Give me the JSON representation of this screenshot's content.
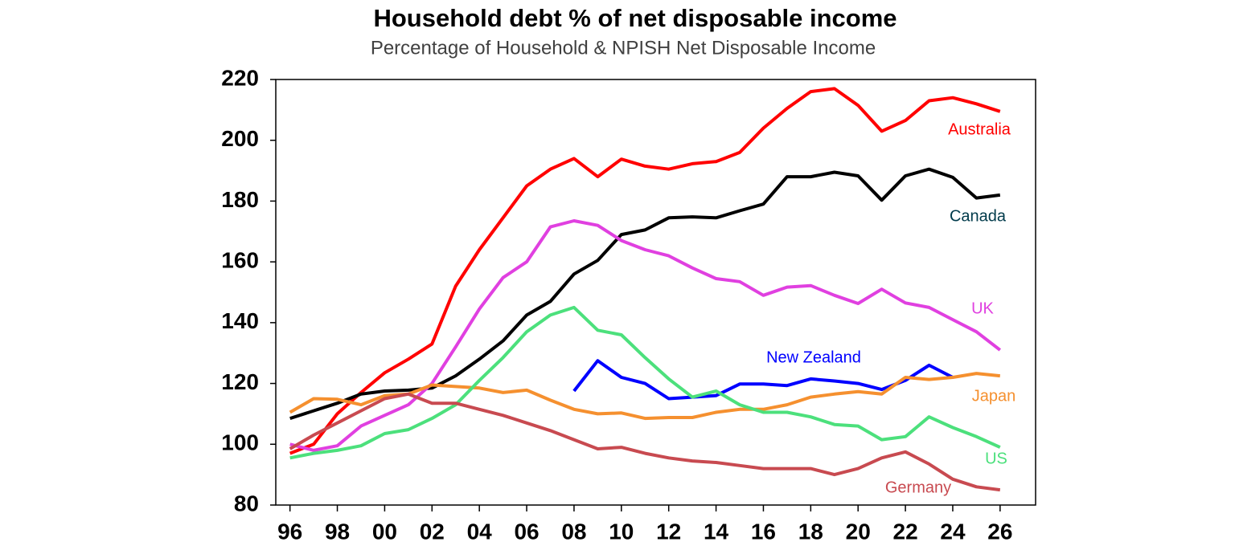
{
  "chart_data": {
    "type": "line",
    "title": "Household debt % of net disposable income",
    "subtitle": "Percentage of Household & NPISH Net Disposable Income",
    "x": [
      1996,
      1997,
      1998,
      1999,
      2000,
      2001,
      2002,
      2003,
      2004,
      2005,
      2006,
      2007,
      2008,
      2009,
      2010,
      2011,
      2012,
      2013,
      2014,
      2015,
      2016,
      2017,
      2018,
      2019,
      2020,
      2021,
      2022,
      2023,
      2024,
      2025,
      2026
    ],
    "xlim": [
      1995.4,
      2027.5
    ],
    "xticks": [
      {
        "value": 1996,
        "label": "96"
      },
      {
        "value": 1998,
        "label": "98"
      },
      {
        "value": 2000,
        "label": "00"
      },
      {
        "value": 2002,
        "label": "02"
      },
      {
        "value": 2004,
        "label": "04"
      },
      {
        "value": 2006,
        "label": "06"
      },
      {
        "value": 2008,
        "label": "08"
      },
      {
        "value": 2010,
        "label": "10"
      },
      {
        "value": 2012,
        "label": "12"
      },
      {
        "value": 2014,
        "label": "14"
      },
      {
        "value": 2016,
        "label": "16"
      },
      {
        "value": 2018,
        "label": "18"
      },
      {
        "value": 2020,
        "label": "20"
      },
      {
        "value": 2022,
        "label": "22"
      },
      {
        "value": 2024,
        "label": "24"
      },
      {
        "value": 2026,
        "label": "26"
      }
    ],
    "ylim": [
      80,
      220
    ],
    "yticks": [
      80,
      100,
      120,
      140,
      160,
      180,
      200,
      220
    ],
    "series": [
      {
        "name": "Australia",
        "color": "#ff0000",
        "values": [
          97,
          100,
          110,
          117,
          123.5,
          128,
          133,
          152,
          164,
          174.5,
          185,
          190.5,
          194,
          188,
          193.8,
          191.5,
          190.5,
          192.3,
          193,
          196,
          204,
          210.5,
          216,
          217,
          211.5,
          203,
          206.5,
          213,
          214,
          212,
          209.5
        ]
      },
      {
        "name": "Canada",
        "color": "#000000",
        "values": [
          108.5,
          111,
          113.5,
          116.5,
          117.5,
          117.8,
          118.5,
          122.5,
          128,
          134,
          142.5,
          147,
          156,
          160.5,
          169,
          170.5,
          174.5,
          174.8,
          174.5,
          176.8,
          179,
          188,
          188,
          189.5,
          188.3,
          180.3,
          188.3,
          190.5,
          187.8,
          181,
          182
        ]
      },
      {
        "name": "UK",
        "color": "#e040e0",
        "values": [
          100,
          98,
          99.5,
          106,
          109.5,
          113,
          120,
          132,
          144.5,
          154.8,
          160,
          171.5,
          173.5,
          172,
          167,
          164,
          162,
          158,
          154.5,
          153.5,
          149,
          151.7,
          152.2,
          149,
          146.3,
          151,
          146.5,
          145,
          141,
          137,
          131
        ]
      },
      {
        "name": "New Zealand",
        "color": "#0000ff",
        "values": [
          null,
          null,
          null,
          null,
          null,
          null,
          null,
          null,
          null,
          null,
          null,
          null,
          117.5,
          127.5,
          122,
          120,
          115,
          115.5,
          116,
          119.8,
          119.8,
          119.3,
          121.5,
          120.8,
          120,
          118,
          121,
          126,
          122,
          null,
          null
        ]
      },
      {
        "name": "Japan",
        "color": "#f5902f",
        "values": [
          110.5,
          115,
          114.8,
          113,
          116,
          116.5,
          119.5,
          119,
          118.5,
          117,
          117.8,
          114.5,
          111.5,
          110,
          110.3,
          108.5,
          108.8,
          108.8,
          110.5,
          111.5,
          111.5,
          113,
          115.5,
          116.5,
          117.3,
          116.5,
          122,
          121.3,
          122,
          123.3,
          122.5
        ]
      },
      {
        "name": "US",
        "color": "#4ce07c",
        "values": [
          95.5,
          97,
          98,
          99.5,
          103.5,
          104.8,
          108.5,
          113,
          121,
          128.5,
          137,
          142.5,
          145,
          137.5,
          136,
          128.5,
          121.5,
          115.5,
          117.5,
          113,
          110.5,
          110.5,
          109,
          106.5,
          106,
          101.5,
          102.5,
          109,
          105.5,
          102.5,
          99
        ]
      },
      {
        "name": "Germany",
        "color": "#c84a50",
        "values": [
          98.5,
          103,
          107,
          111,
          115,
          116.5,
          113.5,
          113.5,
          111.5,
          109.5,
          107,
          104.5,
          101.5,
          98.5,
          99,
          97,
          95.5,
          94.5,
          94,
          93,
          92,
          92,
          92,
          90,
          92,
          95.5,
          97.5,
          93.5,
          88.5,
          86,
          85
        ]
      }
    ]
  }
}
